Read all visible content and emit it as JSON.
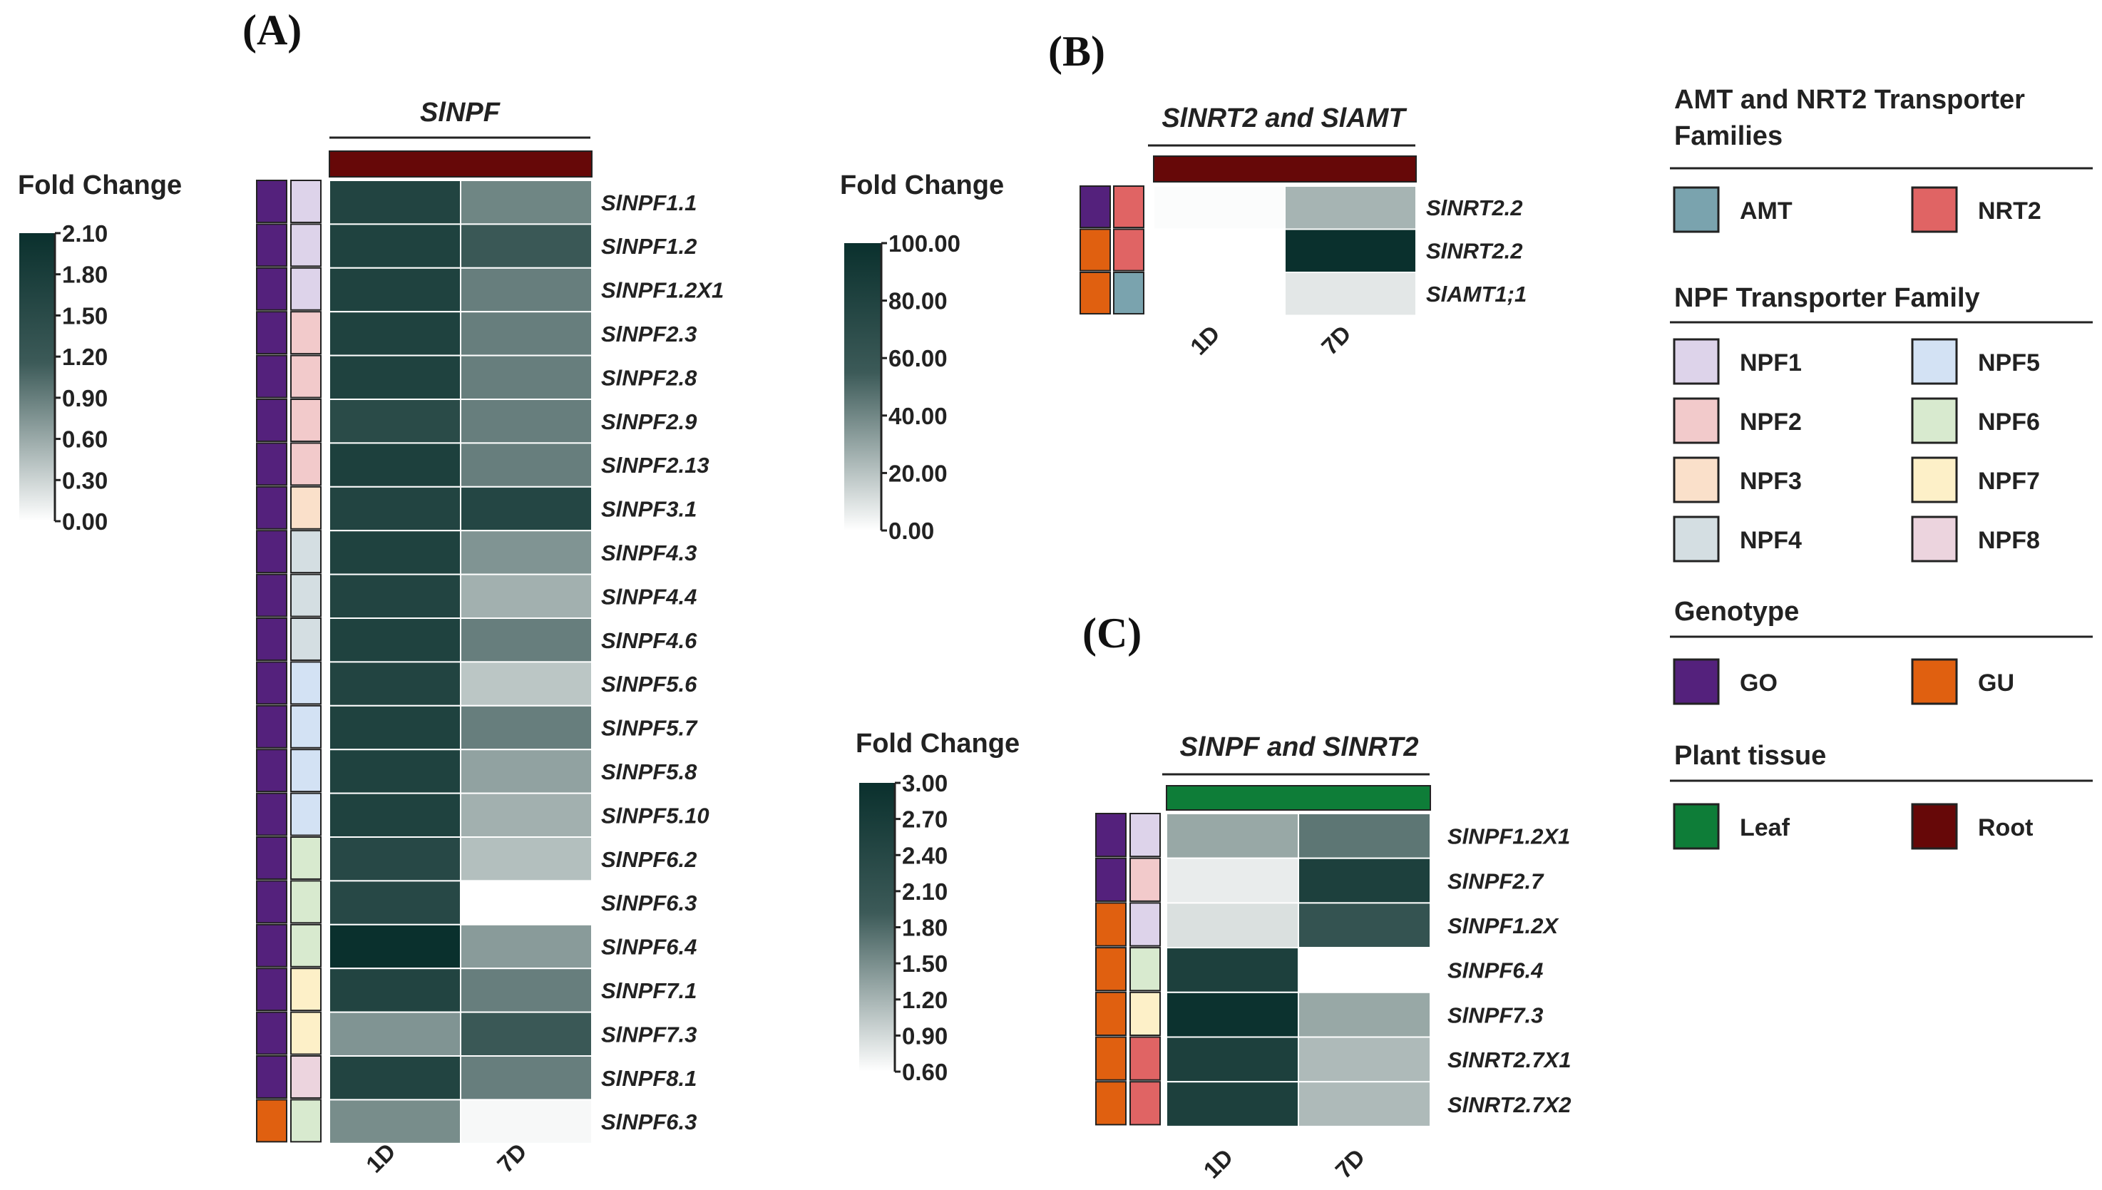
{
  "chart_data": [
    {
      "type": "heatmap",
      "panel_label": "(A)",
      "title": "SlNPF",
      "legend_title": "Fold Change",
      "color_ticks": [
        "2.10",
        "1.80",
        "1.50",
        "1.20",
        "0.90",
        "0.60",
        "0.30",
        "0.00"
      ],
      "value_range": [
        0,
        2.1
      ],
      "columns": [
        "1D",
        "7D"
      ],
      "tissue": "Root",
      "rows": [
        {
          "gene": "SlNPF1.1",
          "genotype": "GO",
          "family": "NPF1",
          "values": [
            1.65,
            0.85
          ]
        },
        {
          "gene": "SlNPF1.2",
          "genotype": "GO",
          "family": "NPF1",
          "values": [
            1.7,
            1.2
          ]
        },
        {
          "gene": "SlNPF1.2X1",
          "genotype": "GO",
          "family": "NPF1",
          "values": [
            1.7,
            0.9
          ]
        },
        {
          "gene": "SlNPF2.3",
          "genotype": "GO",
          "family": "NPF2",
          "values": [
            1.7,
            0.9
          ]
        },
        {
          "gene": "SlNPF2.8",
          "genotype": "GO",
          "family": "NPF2",
          "values": [
            1.7,
            0.9
          ]
        },
        {
          "gene": "SlNPF2.9",
          "genotype": "GO",
          "family": "NPF2",
          "values": [
            1.5,
            0.9
          ]
        },
        {
          "gene": "SlNPF2.13",
          "genotype": "GO",
          "family": "NPF2",
          "values": [
            1.75,
            0.9
          ]
        },
        {
          "gene": "SlNPF3.1",
          "genotype": "GO",
          "family": "NPF3",
          "values": [
            1.65,
            1.6
          ]
        },
        {
          "gene": "SlNPF4.3",
          "genotype": "GO",
          "family": "NPF4",
          "values": [
            1.7,
            0.75
          ]
        },
        {
          "gene": "SlNPF4.4",
          "genotype": "GO",
          "family": "NPF4",
          "values": [
            1.65,
            0.55
          ]
        },
        {
          "gene": "SlNPF4.6",
          "genotype": "GO",
          "family": "NPF4",
          "values": [
            1.7,
            0.9
          ]
        },
        {
          "gene": "SlNPF5.6",
          "genotype": "GO",
          "family": "NPF5",
          "values": [
            1.65,
            0.4
          ]
        },
        {
          "gene": "SlNPF5.7",
          "genotype": "GO",
          "family": "NPF5",
          "values": [
            1.7,
            0.9
          ]
        },
        {
          "gene": "SlNPF5.8",
          "genotype": "GO",
          "family": "NPF5",
          "values": [
            1.7,
            0.65
          ]
        },
        {
          "gene": "SlNPF5.10",
          "genotype": "GO",
          "family": "NPF5",
          "values": [
            1.7,
            0.55
          ]
        },
        {
          "gene": "SlNPF6.2",
          "genotype": "GO",
          "family": "NPF6",
          "values": [
            1.55,
            0.45
          ]
        },
        {
          "gene": "SlNPF6.3",
          "genotype": "GO",
          "family": "NPF6",
          "values": [
            1.55,
            0.0
          ]
        },
        {
          "gene": "SlNPF6.4",
          "genotype": "GO",
          "family": "NPF6",
          "values": [
            2.1,
            0.7
          ]
        },
        {
          "gene": "SlNPF7.1",
          "genotype": "GO",
          "family": "NPF7",
          "values": [
            1.65,
            0.9
          ]
        },
        {
          "gene": "SlNPF7.3",
          "genotype": "GO",
          "family": "NPF7",
          "values": [
            0.75,
            1.2
          ]
        },
        {
          "gene": "SlNPF8.1",
          "genotype": "GO",
          "family": "NPF8",
          "values": [
            1.65,
            0.9
          ]
        },
        {
          "gene": "SlNPF6.3",
          "genotype": "GU",
          "family": "NPF6",
          "values": [
            0.8,
            0.05
          ]
        }
      ]
    },
    {
      "type": "heatmap",
      "panel_label": "(B)",
      "title": "SlNRT2 and SlAMT",
      "legend_title": "Fold Change",
      "color_ticks": [
        "100.00",
        "80.00",
        "60.00",
        "40.00",
        "20.00",
        "0.00"
      ],
      "value_range": [
        0,
        100
      ],
      "columns": [
        "1D",
        "7D"
      ],
      "tissue": "Root",
      "rows": [
        {
          "gene": "SlNRT2.2",
          "genotype": "GO",
          "family": "NRT2",
          "values": [
            1,
            25
          ]
        },
        {
          "gene": "SlNRT2.2",
          "genotype": "GU",
          "family": "NRT2",
          "values": [
            0,
            100
          ]
        },
        {
          "gene": "SlAMT1;1",
          "genotype": "GU",
          "family": "AMT",
          "values": [
            0,
            8
          ]
        }
      ]
    },
    {
      "type": "heatmap",
      "panel_label": "(C)",
      "title": "SlNPF and SlNRT2",
      "legend_title": "Fold Change",
      "color_ticks": [
        "3.00",
        "2.70",
        "2.40",
        "2.10",
        "1.80",
        "1.50",
        "1.20",
        "0.90",
        "0.60"
      ],
      "value_range": [
        0.6,
        3.0
      ],
      "columns": [
        "1D",
        "7D"
      ],
      "tissue": "Leaf",
      "rows": [
        {
          "gene": "SlNPF1.2X1",
          "genotype": "GO",
          "family": "NPF1",
          "values": [
            1.3,
            1.7
          ]
        },
        {
          "gene": "SlNPF2.7",
          "genotype": "GO",
          "family": "NPF2",
          "values": [
            0.75,
            2.6
          ]
        },
        {
          "gene": "SlNPF1.2X",
          "genotype": "GU",
          "family": "NPF1",
          "values": [
            0.85,
            2.1
          ]
        },
        {
          "gene": "SlNPF6.4",
          "genotype": "GU",
          "family": "NPF6",
          "values": [
            2.6,
            0.6
          ]
        },
        {
          "gene": "SlNPF7.3",
          "genotype": "GU",
          "family": "NPF7",
          "values": [
            2.95,
            1.3
          ]
        },
        {
          "gene": "SlNRT2.7X1",
          "genotype": "GU",
          "family": "NRT2",
          "values": [
            2.6,
            1.15
          ]
        },
        {
          "gene": "SlNRT2.7X2",
          "genotype": "GU",
          "family": "NRT2",
          "values": [
            2.6,
            1.15
          ]
        }
      ]
    }
  ],
  "legend": {
    "amt_nrt2": {
      "title_line1": "AMT and NRT2 Transporter",
      "title_line2": "Families",
      "items": [
        {
          "label": "AMT",
          "color": "#7aa3ae"
        },
        {
          "label": "NRT2",
          "color": "#e06464"
        }
      ]
    },
    "npf": {
      "title": "NPF Transporter Family",
      "items": [
        {
          "label": "NPF1",
          "color": "#ddd3ea"
        },
        {
          "label": "NPF5",
          "color": "#d3e2f4"
        },
        {
          "label": "NPF2",
          "color": "#f2cacb"
        },
        {
          "label": "NPF6",
          "color": "#d8eacf"
        },
        {
          "label": "NPF3",
          "color": "#fae0ca"
        },
        {
          "label": "NPF7",
          "color": "#fdf0c8"
        },
        {
          "label": "NPF4",
          "color": "#d4dee2"
        },
        {
          "label": "NPF8",
          "color": "#ecd4de"
        }
      ]
    },
    "genotype": {
      "title": "Genotype",
      "items": [
        {
          "label": "GO",
          "color": "#54217c"
        },
        {
          "label": "GU",
          "color": "#e06010"
        }
      ]
    },
    "tissue": {
      "title": "Plant tissue",
      "items": [
        {
          "label": "Leaf",
          "color": "#0e7d38"
        },
        {
          "label": "Root",
          "color": "#660808"
        }
      ]
    }
  },
  "colors": {
    "high": "#0a302d",
    "low": "#ffffff"
  }
}
